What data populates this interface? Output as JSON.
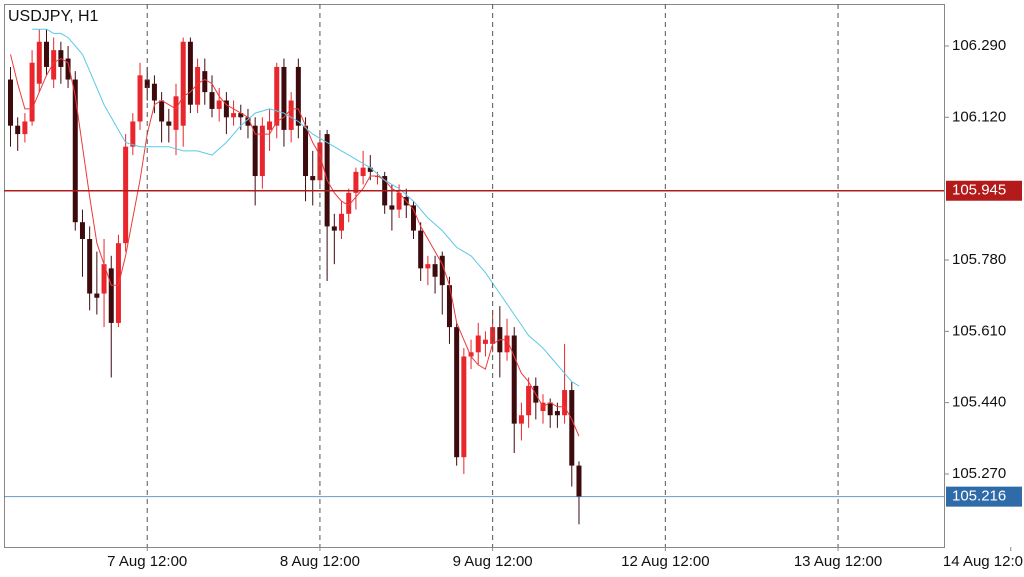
{
  "chart_data": {
    "type": "candlestick",
    "title": "USDJPY, H1",
    "categories": [
      null,
      null,
      null,
      null,
      null,
      null,
      null,
      null,
      null,
      null,
      null,
      null,
      null,
      null,
      null,
      null,
      null,
      null,
      null,
      "7 Aug 12:00",
      null,
      null,
      null,
      null,
      null,
      null,
      null,
      null,
      null,
      null,
      null,
      null,
      null,
      null,
      null,
      null,
      null,
      null,
      null,
      null,
      null,
      null,
      null,
      "8 Aug 12:00",
      null,
      null,
      null,
      null,
      null,
      null,
      null,
      null,
      null,
      null,
      null,
      null,
      null,
      null,
      null,
      null,
      null,
      null,
      null,
      null,
      null,
      null,
      null,
      "9 Aug 12:00",
      null,
      null,
      null,
      null,
      null,
      null,
      null,
      null,
      null,
      null,
      null,
      null,
      null,
      null,
      null,
      null,
      null,
      null,
      null,
      null,
      null,
      null,
      null,
      "12 Aug 12:00",
      null,
      null,
      null,
      null,
      null,
      null,
      null,
      null,
      null,
      null,
      null,
      null,
      null,
      null,
      null,
      null,
      null,
      null,
      null,
      null,
      null,
      null,
      null,
      "13 Aug 12:00",
      null,
      null,
      null,
      null,
      null,
      null,
      null,
      null,
      null,
      null,
      null,
      null,
      null,
      null,
      null,
      null,
      null,
      null,
      null,
      null,
      null,
      null,
      null,
      "14 Aug 12:0"
    ],
    "open": [
      106.21,
      106.1,
      106.08,
      106.11,
      106.2,
      106.3,
      106.21,
      106.28,
      106.26,
      106.21,
      105.87,
      105.83,
      105.7,
      105.7,
      105.76,
      105.63,
      105.82,
      106.05,
      106.11,
      106.21,
      106.2,
      106.16,
      106.11,
      106.09,
      106.1,
      106.3,
      106.15,
      106.23,
      106.18,
      106.14,
      106.16,
      106.12,
      106.13,
      106.12,
      106.1,
      105.98,
      106.09,
      106.1,
      106.24,
      106.09,
      106.24,
      106.1,
      105.98,
      105.97,
      106.08,
      105.86,
      105.85,
      105.89,
      105.94,
      105.98,
      106.0,
      105.98,
      105.98,
      105.91,
      105.9,
      105.93,
      105.91,
      105.85,
      105.76,
      105.77,
      105.79,
      105.72,
      105.62,
      105.31,
      105.55,
      105.56,
      105.58,
      105.58,
      105.62,
      105.56,
      105.6,
      105.39,
      105.41,
      105.48,
      105.42,
      105.44,
      105.42,
      105.41,
      105.47,
      105.29,
      null,
      null,
      null,
      null,
      null,
      null,
      null,
      null,
      null,
      null,
      null,
      null,
      null,
      null,
      null,
      null,
      null,
      null,
      null,
      null,
      null,
      null,
      null,
      null,
      null,
      null,
      null,
      null,
      null,
      null,
      null,
      null,
      null,
      null,
      null,
      null,
      null,
      null,
      null,
      null,
      null,
      null,
      null,
      null,
      null,
      null,
      null,
      null,
      null,
      null,
      null,
      null,
      null,
      null,
      null,
      null,
      null,
      null,
      null,
      null
    ],
    "high": [
      106.24,
      106.12,
      106.13,
      106.28,
      106.33,
      106.33,
      106.31,
      106.3,
      106.29,
      106.23,
      105.9,
      105.86,
      105.8,
      105.83,
      105.79,
      105.84,
      106.08,
      106.13,
      106.25,
      106.24,
      106.22,
      106.18,
      106.14,
      106.2,
      106.31,
      106.31,
      106.26,
      106.26,
      106.22,
      106.19,
      106.18,
      106.16,
      106.15,
      106.14,
      106.12,
      106.12,
      106.14,
      106.25,
      106.26,
      106.18,
      106.26,
      106.12,
      106.04,
      106.08,
      106.09,
      105.89,
      105.92,
      105.95,
      106.0,
      106.04,
      106.03,
      105.99,
      105.99,
      105.96,
      105.96,
      105.95,
      105.92,
      105.87,
      105.79,
      105.79,
      105.8,
      105.74,
      105.63,
      105.57,
      105.59,
      105.63,
      105.61,
      105.66,
      105.67,
      105.64,
      105.62,
      105.44,
      105.5,
      105.5,
      105.46,
      105.45,
      105.44,
      105.58,
      105.49,
      105.3,
      null,
      null,
      null,
      null,
      null,
      null,
      null,
      null,
      null,
      null,
      null,
      null,
      null,
      null,
      null,
      null,
      null,
      null,
      null,
      null,
      null,
      null,
      null,
      null,
      null,
      null,
      null,
      null,
      null,
      null,
      null,
      null,
      null,
      null,
      null,
      null,
      null,
      null,
      null,
      null,
      null,
      null,
      null,
      null,
      null,
      null,
      null,
      null,
      null,
      null,
      null,
      null,
      null,
      null,
      null,
      null,
      null,
      null,
      null,
      null
    ],
    "low": [
      106.05,
      106.04,
      106.06,
      106.1,
      106.18,
      106.22,
      106.19,
      106.2,
      106.19,
      105.85,
      105.74,
      105.66,
      105.65,
      105.62,
      105.5,
      105.62,
      105.8,
      106.03,
      106.09,
      106.16,
      106.13,
      106.06,
      106.06,
      106.03,
      106.05,
      106.13,
      106.13,
      106.15,
      106.12,
      106.11,
      106.08,
      106.1,
      106.09,
      106.07,
      105.91,
      105.95,
      106.04,
      106.07,
      106.05,
      106.06,
      106.07,
      105.92,
      105.91,
      105.95,
      105.73,
      105.77,
      105.83,
      105.87,
      105.9,
      105.96,
      105.97,
      105.96,
      105.89,
      105.85,
      105.88,
      105.88,
      105.83,
      105.73,
      105.72,
      105.7,
      105.65,
      105.58,
      105.29,
      105.27,
      105.52,
      105.53,
      105.55,
      105.56,
      105.5,
      105.54,
      105.32,
      105.35,
      105.38,
      105.4,
      105.39,
      105.38,
      105.38,
      105.39,
      105.24,
      105.15,
      null,
      null,
      null,
      null,
      null,
      null,
      null,
      null,
      null,
      null,
      null,
      null,
      null,
      null,
      null,
      null,
      null,
      null,
      null,
      null,
      null,
      null,
      null,
      null,
      null,
      null,
      null,
      null,
      null,
      null,
      null,
      null,
      null,
      null,
      null,
      null,
      null,
      null,
      null,
      null,
      null,
      null,
      null,
      null,
      null,
      null,
      null,
      null,
      null,
      null,
      null,
      null,
      null,
      null,
      null,
      null,
      null,
      null,
      null,
      null
    ],
    "close": [
      106.1,
      106.08,
      106.11,
      106.25,
      106.3,
      106.24,
      106.28,
      106.24,
      106.21,
      105.87,
      105.83,
      105.7,
      105.69,
      105.77,
      105.63,
      105.82,
      106.05,
      106.11,
      106.22,
      106.19,
      106.16,
      106.11,
      106.1,
      106.17,
      106.3,
      106.15,
      106.24,
      106.18,
      106.14,
      106.16,
      106.12,
      106.13,
      106.12,
      106.1,
      105.98,
      106.1,
      106.11,
      106.24,
      106.09,
      106.16,
      106.1,
      105.98,
      105.97,
      106.06,
      105.86,
      105.85,
      105.89,
      105.94,
      105.99,
      106.0,
      105.99,
      105.98,
      105.91,
      105.9,
      105.94,
      105.91,
      105.85,
      105.76,
      105.77,
      105.74,
      105.72,
      105.62,
      105.31,
      105.55,
      105.56,
      105.6,
      105.59,
      105.62,
      105.56,
      105.6,
      105.39,
      105.41,
      105.48,
      105.44,
      105.44,
      105.41,
      105.41,
      105.47,
      105.29,
      105.216,
      null,
      null,
      null,
      null,
      null,
      null,
      null,
      null,
      null,
      null,
      null,
      null,
      null,
      null,
      null,
      null,
      null,
      null,
      null,
      null,
      null,
      null,
      null,
      null,
      null,
      null,
      null,
      null,
      null,
      null,
      null,
      null,
      null,
      null,
      null,
      null,
      null,
      null,
      null,
      null,
      null,
      null,
      null,
      null,
      null,
      null,
      null,
      null,
      null,
      null,
      null,
      null,
      null,
      null,
      null,
      null,
      null,
      null,
      null,
      null
    ],
    "up_color": "#e8262c",
    "down_color": "#3d0a0e",
    "lines": [
      {
        "color": "#ee3a3a",
        "values": [
          106.27,
          106.2,
          106.14,
          106.14,
          106.18,
          106.22,
          106.25,
          106.26,
          106.25,
          106.17,
          106.05,
          105.93,
          105.82,
          105.77,
          105.72,
          105.72,
          105.79,
          105.88,
          105.97,
          106.08,
          106.15,
          106.16,
          106.15,
          106.14,
          106.17,
          106.18,
          106.2,
          106.21,
          106.2,
          106.17,
          106.15,
          106.14,
          106.13,
          106.12,
          106.08,
          106.08,
          106.08,
          106.11,
          106.12,
          106.14,
          106.14,
          106.1,
          106.06,
          106.03,
          105.97,
          105.94,
          105.92,
          105.91,
          105.93,
          105.95,
          105.98,
          105.98,
          105.97,
          105.95,
          105.94,
          105.92,
          105.9,
          105.86,
          105.83,
          105.8,
          105.77,
          105.72,
          105.63,
          105.59,
          105.55,
          105.53,
          105.52,
          105.58,
          105.59,
          105.59,
          105.55,
          105.51,
          105.49,
          105.46,
          105.43,
          105.44,
          105.43,
          105.43,
          105.4,
          105.36,
          null,
          null,
          null,
          null,
          null,
          null,
          null,
          null,
          null,
          null,
          null,
          null,
          null,
          null,
          null,
          null,
          null,
          null,
          null,
          null,
          null,
          null,
          null,
          null,
          null,
          null,
          null,
          null,
          null,
          null,
          null,
          null,
          null,
          null,
          null,
          null,
          null,
          null,
          null,
          null,
          null,
          null,
          null,
          null,
          null,
          null,
          null,
          null,
          null,
          null,
          null,
          null,
          null,
          null,
          null,
          null,
          null,
          null,
          null,
          null
        ]
      },
      {
        "color": "#5cc8e6",
        "values": [
          null,
          null,
          null,
          106.33,
          106.33,
          106.33,
          106.32,
          106.32,
          106.31,
          106.29,
          106.27,
          106.23,
          106.19,
          106.15,
          106.12,
          106.09,
          106.06,
          106.055,
          106.05,
          106.05,
          106.05,
          106.05,
          106.05,
          106.045,
          106.04,
          106.04,
          106.04,
          106.035,
          106.03,
          106.045,
          106.06,
          106.08,
          106.1,
          106.115,
          106.13,
          106.135,
          106.14,
          106.135,
          106.13,
          106.12,
          106.11,
          106.095,
          106.08,
          106.07,
          106.06,
          106.05,
          106.04,
          106.03,
          106.02,
          106.01,
          106.0,
          105.985,
          105.97,
          105.96,
          105.95,
          105.935,
          105.92,
          105.9,
          105.88,
          105.865,
          105.85,
          105.83,
          105.81,
          105.8,
          105.79,
          105.77,
          105.75,
          105.725,
          105.7,
          105.675,
          105.65,
          105.625,
          105.6,
          105.585,
          105.57,
          105.55,
          105.53,
          105.51,
          105.49,
          105.48,
          null,
          null,
          null,
          null,
          null,
          null,
          null,
          null,
          null,
          null,
          null,
          null,
          null,
          null,
          null,
          null,
          null,
          null,
          null,
          null,
          null,
          null,
          null,
          null,
          null,
          null,
          null,
          null,
          null,
          null,
          null,
          null,
          null,
          null,
          null,
          null,
          null,
          null,
          null,
          null,
          null,
          null,
          null,
          null,
          null,
          null,
          null,
          null,
          null,
          null,
          null,
          null,
          null,
          null,
          null,
          null,
          null,
          null,
          null,
          null
        ]
      }
    ],
    "hlines": [
      {
        "value": 105.945,
        "color": "#b31b1b"
      },
      {
        "value": 105.216,
        "color": "#2e6ba8"
      }
    ],
    "ylim": [
      105.096,
      106.39
    ],
    "yticks": [
      {
        "value": 106.29,
        "label": "106.290"
      },
      {
        "value": 106.12,
        "label": "106.120"
      },
      {
        "value": 105.78,
        "label": "105.780"
      },
      {
        "value": 105.61,
        "label": "105.610"
      },
      {
        "value": 105.44,
        "label": "105.440"
      },
      {
        "value": 105.27,
        "label": "105.270"
      }
    ]
  }
}
